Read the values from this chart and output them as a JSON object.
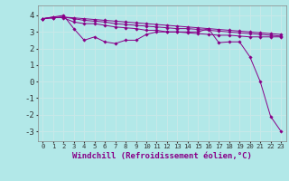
{
  "background_color": "#b2e8e8",
  "grid_color": "#d0f0f0",
  "line_color": "#880088",
  "xlabel": "Windchill (Refroidissement éolien,°C)",
  "xlabel_fontsize": 6.5,
  "xtick_fontsize": 5.2,
  "ytick_fontsize": 6.5,
  "ylim": [
    -3.6,
    4.6
  ],
  "xlim": [
    -0.5,
    23.5
  ],
  "yticks": [
    -3,
    -2,
    -1,
    0,
    1,
    2,
    3,
    4
  ],
  "xtick_labels": [
    "0",
    "1",
    "2",
    "3",
    "4",
    "5",
    "6",
    "7",
    "8",
    "9",
    "10",
    "11",
    "12",
    "13",
    "14",
    "15",
    "16",
    "17",
    "18",
    "19",
    "20",
    "21",
    "22",
    "23"
  ],
  "xticks": [
    0,
    1,
    2,
    3,
    4,
    5,
    6,
    7,
    8,
    9,
    10,
    11,
    12,
    13,
    14,
    15,
    16,
    17,
    18,
    19,
    20,
    21,
    22,
    23
  ],
  "series": [
    {
      "x": [
        0,
        1,
        2,
        3,
        4,
        5,
        6,
        7,
        8,
        9,
        10,
        11,
        12,
        13,
        14,
        15,
        16,
        17,
        18,
        19,
        20,
        21,
        22,
        23
      ],
      "y": [
        3.8,
        3.9,
        4.0,
        3.2,
        2.5,
        2.7,
        2.4,
        2.3,
        2.5,
        2.5,
        2.85,
        3.0,
        3.0,
        3.0,
        3.0,
        3.0,
        3.2,
        2.35,
        2.4,
        2.4,
        1.5,
        0.0,
        -2.1,
        -3.0
      ]
    },
    {
      "x": [
        0,
        1,
        2,
        3,
        4,
        5,
        6,
        7,
        8,
        9,
        10,
        11,
        12,
        13,
        14,
        15,
        16,
        17,
        18,
        19,
        20,
        21,
        22,
        23
      ],
      "y": [
        3.8,
        3.9,
        3.85,
        3.6,
        3.5,
        3.5,
        3.4,
        3.3,
        3.25,
        3.2,
        3.1,
        3.1,
        3.0,
        3.0,
        2.95,
        2.9,
        2.85,
        2.8,
        2.8,
        2.75,
        2.7,
        2.7,
        2.7,
        2.7
      ]
    },
    {
      "x": [
        0,
        1,
        2,
        3,
        4,
        5,
        6,
        7,
        8,
        9,
        10,
        11,
        12,
        13,
        14,
        15,
        16,
        17,
        18,
        19,
        20,
        21,
        22,
        23
      ],
      "y": [
        3.8,
        3.85,
        3.9,
        3.8,
        3.7,
        3.65,
        3.6,
        3.5,
        3.45,
        3.4,
        3.35,
        3.3,
        3.25,
        3.2,
        3.2,
        3.15,
        3.1,
        3.05,
        3.0,
        2.95,
        2.9,
        2.85,
        2.8,
        2.75
      ]
    },
    {
      "x": [
        0,
        1,
        2,
        3,
        4,
        5,
        6,
        7,
        8,
        9,
        10,
        11,
        12,
        13,
        14,
        15,
        16,
        17,
        18,
        19,
        20,
        21,
        22,
        23
      ],
      "y": [
        3.8,
        3.85,
        3.9,
        3.85,
        3.8,
        3.75,
        3.7,
        3.65,
        3.6,
        3.55,
        3.5,
        3.45,
        3.4,
        3.35,
        3.3,
        3.25,
        3.2,
        3.15,
        3.1,
        3.05,
        3.0,
        2.95,
        2.9,
        2.85
      ]
    }
  ]
}
